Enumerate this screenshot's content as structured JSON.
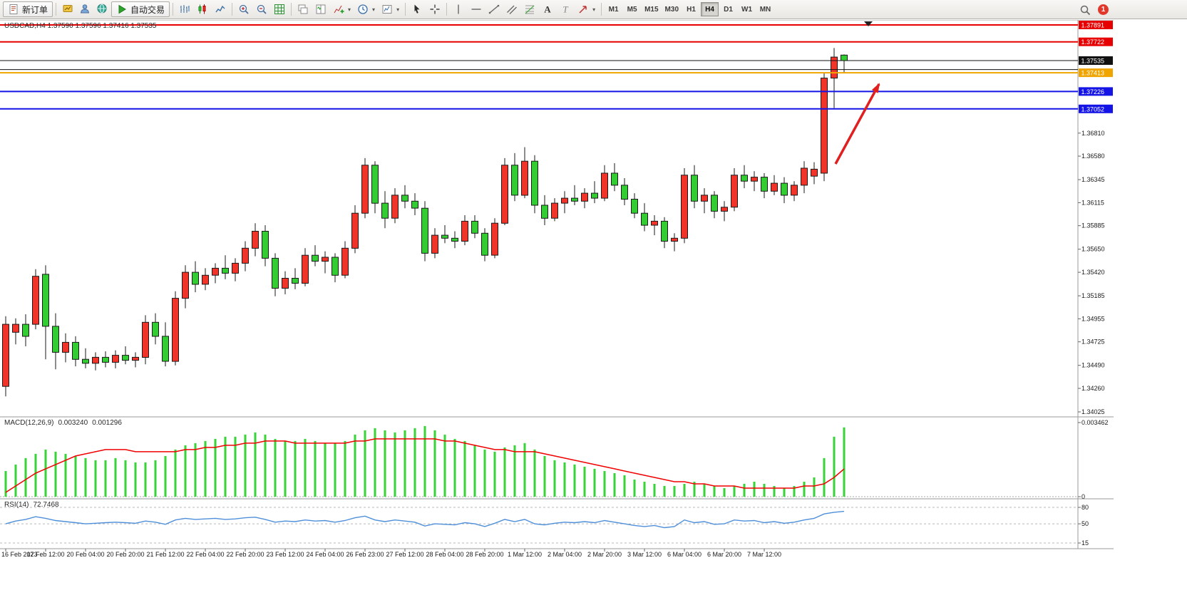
{
  "colors": {
    "bull": "#f0342a",
    "bear": "#33cc33",
    "candle_border": "#1a1a1a",
    "macd_hist": "#37d337",
    "macd_signal": "#f00000",
    "rsi_line": "#4e8fd9",
    "arrow": "#e02020",
    "axis_text": "#1a1a1a",
    "badge_text": "#ffffff"
  },
  "toolbar": {
    "new_order_label": "新订单",
    "autotrading_label": "自动交易",
    "notification_count": "1",
    "left_icons": [
      {
        "name": "symbols-window-button",
        "icon": "symbols"
      },
      {
        "name": "profiles-button",
        "icon": "profile"
      },
      {
        "name": "data-window-button",
        "icon": "globe"
      }
    ],
    "tools": [
      {
        "name": "bars-chart-button",
        "icon": "bars"
      },
      {
        "name": "candlestick-chart-button",
        "icon": "candles"
      },
      {
        "name": "line-chart-button",
        "icon": "linechart"
      },
      {
        "sep": true
      },
      {
        "name": "zoom-in-button",
        "icon": "zoomin"
      },
      {
        "name": "zoom-out-button",
        "icon": "zoomout"
      },
      {
        "name": "auto-arrange-button",
        "icon": "grid"
      },
      {
        "sep": true
      },
      {
        "name": "cascade-windows-button",
        "icon": "cascade"
      },
      {
        "name": "tile-windows-button",
        "icon": "tileh"
      },
      {
        "name": "add-indicator-button",
        "icon": "addind",
        "caret": true
      },
      {
        "name": "periods-button",
        "icon": "clock",
        "caret": true
      },
      {
        "name": "templates-button",
        "icon": "template",
        "caret": true
      },
      {
        "sep": true
      },
      {
        "name": "cursor-button",
        "icon": "cursor"
      },
      {
        "name": "crosshair-button",
        "icon": "crosshair"
      },
      {
        "sep": true
      },
      {
        "name": "vertical-line-button",
        "icon": "vline"
      },
      {
        "name": "horizontal-line-button",
        "icon": "hline"
      },
      {
        "name": "trendline-button",
        "icon": "trend"
      },
      {
        "name": "channel-button",
        "icon": "channel"
      },
      {
        "name": "fibonacci-button",
        "icon": "fibo"
      },
      {
        "name": "text-button",
        "icon": "textA"
      },
      {
        "name": "text-label-button",
        "icon": "labelT"
      },
      {
        "name": "arrows-button",
        "icon": "arrows",
        "caret": true
      }
    ],
    "timeframes": [
      {
        "label": "M1"
      },
      {
        "label": "M5"
      },
      {
        "label": "M15"
      },
      {
        "label": "M30"
      },
      {
        "label": "H1"
      },
      {
        "label": "H4",
        "active": true
      },
      {
        "label": "D1"
      },
      {
        "label": "W1"
      },
      {
        "label": "MN"
      }
    ]
  },
  "chart": {
    "title": "USDCAD,H4 1.37590 1.37596 1.37416 1.37535",
    "symbol": "USDCAD",
    "period": "H4",
    "price_axis_labels": [
      "1.36810",
      "1.36580",
      "1.36345",
      "1.36115",
      "1.35885",
      "1.35650",
      "1.35420",
      "1.35185",
      "1.34955",
      "1.34725",
      "1.34490",
      "1.34260",
      "1.34025"
    ],
    "time_axis_labels": [
      "16 Feb 2023",
      "17 Feb 12:00",
      "20 Feb 04:00",
      "20 Feb 20:00",
      "21 Feb 12:00",
      "22 Feb 04:00",
      "22 Feb 20:00",
      "23 Feb 12:00",
      "24 Feb 04:00",
      "26 Feb 23:00",
      "27 Feb 12:00",
      "28 Feb 04:00",
      "28 Feb 20:00",
      "1 Mar 12:00",
      "2 Mar 04:00",
      "2 Mar 20:00",
      "3 Mar 12:00",
      "6 Mar 04:00",
      "6 Mar 20:00",
      "7 Mar 12:00"
    ],
    "macd": {
      "label": "MACD(12,26,9)",
      "main_value": "0.003240",
      "signal_value": "0.001296",
      "axis_max_label": "0.003462",
      "axis_zero_label": "0"
    },
    "rsi": {
      "label": "RSI(14)",
      "value": "72.7468",
      "level_labels": [
        "80",
        "50",
        "15"
      ]
    }
  },
  "chart_data": [
    {
      "type": "candlestick",
      "symbol": "USDCAD",
      "timeframe": "H4",
      "ohlc_current": {
        "open": 1.3759,
        "high": 1.37596,
        "low": 1.37416,
        "close": 1.37535
      },
      "ylim": [
        1.34025,
        1.37891
      ],
      "grid": false,
      "horizontal_lines": [
        {
          "price": 1.37891,
          "color": "#e60000",
          "width": 2,
          "label": "1.37891"
        },
        {
          "price": 1.37722,
          "color": "#e60000",
          "width": 2,
          "label": "1.37722"
        },
        {
          "price": 1.37535,
          "color": "#111111",
          "width": 1,
          "label": "1.37535",
          "role": "current-price"
        },
        {
          "price": 1.37445,
          "color": "#111111",
          "width": 1
        },
        {
          "price": 1.37413,
          "color": "#efa400",
          "width": 2,
          "label": "1.37413"
        },
        {
          "price": 1.37226,
          "color": "#1414e6",
          "width": 2,
          "label": "1.37226"
        },
        {
          "price": 1.37052,
          "color": "#1414e6",
          "width": 2,
          "label": "1.37052"
        }
      ],
      "annotations": [
        {
          "type": "arrow",
          "direction": "up-right",
          "color": "#e02020"
        }
      ],
      "candles_ohlc": [
        [
          1.3428,
          1.3498,
          1.3418,
          1.349
        ],
        [
          1.3482,
          1.3496,
          1.347,
          1.349
        ],
        [
          1.349,
          1.35,
          1.3468,
          1.3478
        ],
        [
          1.349,
          1.3545,
          1.3485,
          1.3538
        ],
        [
          1.354,
          1.3549,
          1.3455,
          1.3488
        ],
        [
          1.3488,
          1.3501,
          1.3445,
          1.3462
        ],
        [
          1.3462,
          1.3481,
          1.3452,
          1.3472
        ],
        [
          1.3472,
          1.3478,
          1.3448,
          1.3455
        ],
        [
          1.3455,
          1.3466,
          1.3446,
          1.3451
        ],
        [
          1.3451,
          1.3462,
          1.3444,
          1.3457
        ],
        [
          1.3457,
          1.3463,
          1.3447,
          1.3452
        ],
        [
          1.3452,
          1.3464,
          1.3446,
          1.3459
        ],
        [
          1.3459,
          1.3468,
          1.345,
          1.3454
        ],
        [
          1.3454,
          1.3462,
          1.3447,
          1.3457
        ],
        [
          1.3457,
          1.3499,
          1.345,
          1.3492
        ],
        [
          1.3492,
          1.3501,
          1.347,
          1.3478
        ],
        [
          1.3478,
          1.3492,
          1.3448,
          1.3453
        ],
        [
          1.3453,
          1.3523,
          1.3449,
          1.3516
        ],
        [
          1.3516,
          1.3549,
          1.3506,
          1.3542
        ],
        [
          1.3542,
          1.3553,
          1.3522,
          1.353
        ],
        [
          1.353,
          1.3546,
          1.3524,
          1.3539
        ],
        [
          1.3539,
          1.3551,
          1.3531,
          1.3546
        ],
        [
          1.3546,
          1.3559,
          1.3535,
          1.3541
        ],
        [
          1.3541,
          1.3556,
          1.3533,
          1.3551
        ],
        [
          1.3551,
          1.3573,
          1.3543,
          1.3566
        ],
        [
          1.3566,
          1.3591,
          1.3558,
          1.3583
        ],
        [
          1.3583,
          1.3589,
          1.3548,
          1.3556
        ],
        [
          1.3556,
          1.3561,
          1.3518,
          1.3526
        ],
        [
          1.3526,
          1.3543,
          1.352,
          1.3536
        ],
        [
          1.3536,
          1.3546,
          1.3525,
          1.3531
        ],
        [
          1.3531,
          1.3566,
          1.3528,
          1.3559
        ],
        [
          1.3559,
          1.3569,
          1.3548,
          1.3553
        ],
        [
          1.3553,
          1.3563,
          1.3541,
          1.3557
        ],
        [
          1.3557,
          1.3561,
          1.3532,
          1.3539
        ],
        [
          1.3539,
          1.3573,
          1.3536,
          1.3566
        ],
        [
          1.3566,
          1.3609,
          1.3561,
          1.3601
        ],
        [
          1.3601,
          1.3656,
          1.3596,
          1.3649
        ],
        [
          1.3649,
          1.3653,
          1.3601,
          1.3611
        ],
        [
          1.3611,
          1.3623,
          1.3586,
          1.3596
        ],
        [
          1.3596,
          1.3626,
          1.3591,
          1.3619
        ],
        [
          1.3619,
          1.3629,
          1.3606,
          1.3613
        ],
        [
          1.3613,
          1.3621,
          1.3599,
          1.3606
        ],
        [
          1.3606,
          1.3613,
          1.3553,
          1.3561
        ],
        [
          1.3561,
          1.3586,
          1.3556,
          1.3579
        ],
        [
          1.3579,
          1.3589,
          1.3571,
          1.3576
        ],
        [
          1.3576,
          1.3583,
          1.3566,
          1.3573
        ],
        [
          1.3573,
          1.3599,
          1.3569,
          1.3593
        ],
        [
          1.3593,
          1.3599,
          1.3576,
          1.3581
        ],
        [
          1.3581,
          1.3586,
          1.3553,
          1.3559
        ],
        [
          1.3559,
          1.3596,
          1.3556,
          1.3591
        ],
        [
          1.3591,
          1.3656,
          1.3589,
          1.3649
        ],
        [
          1.3649,
          1.3661,
          1.3613,
          1.3619
        ],
        [
          1.3619,
          1.3667,
          1.3616,
          1.3653
        ],
        [
          1.3653,
          1.3659,
          1.3601,
          1.3609
        ],
        [
          1.3609,
          1.3619,
          1.3589,
          1.3596
        ],
        [
          1.3596,
          1.3616,
          1.3593,
          1.3611
        ],
        [
          1.3611,
          1.3623,
          1.3601,
          1.3616
        ],
        [
          1.3616,
          1.3629,
          1.3609,
          1.3613
        ],
        [
          1.3613,
          1.3626,
          1.3606,
          1.3621
        ],
        [
          1.3621,
          1.3633,
          1.3611,
          1.3616
        ],
        [
          1.3616,
          1.3649,
          1.3613,
          1.3641
        ],
        [
          1.3641,
          1.3651,
          1.3623,
          1.3629
        ],
        [
          1.3629,
          1.3636,
          1.3609,
          1.3615
        ],
        [
          1.3615,
          1.3621,
          1.3596,
          1.3601
        ],
        [
          1.3601,
          1.3611,
          1.3583,
          1.3589
        ],
        [
          1.3589,
          1.3599,
          1.3579,
          1.3593
        ],
        [
          1.3593,
          1.3597,
          1.3566,
          1.3573
        ],
        [
          1.3573,
          1.3581,
          1.3563,
          1.3576
        ],
        [
          1.3576,
          1.3646,
          1.3571,
          1.3639
        ],
        [
          1.3639,
          1.3649,
          1.3606,
          1.3613
        ],
        [
          1.3613,
          1.3626,
          1.3601,
          1.3619
        ],
        [
          1.3619,
          1.3623,
          1.3596,
          1.3603
        ],
        [
          1.3603,
          1.3613,
          1.3593,
          1.3607
        ],
        [
          1.3607,
          1.3646,
          1.3603,
          1.3639
        ],
        [
          1.3639,
          1.3649,
          1.3626,
          1.3633
        ],
        [
          1.3633,
          1.3643,
          1.3623,
          1.3637
        ],
        [
          1.3637,
          1.3641,
          1.3616,
          1.3623
        ],
        [
          1.3623,
          1.3639,
          1.3619,
          1.3631
        ],
        [
          1.3631,
          1.3637,
          1.3611,
          1.3619
        ],
        [
          1.3619,
          1.3633,
          1.3613,
          1.3629
        ],
        [
          1.3629,
          1.3653,
          1.3621,
          1.3646
        ],
        [
          1.3638,
          1.3652,
          1.363,
          1.3645
        ],
        [
          1.3641,
          1.3741,
          1.3633,
          1.3736
        ],
        [
          1.3736,
          1.3766,
          1.3706,
          1.3757
        ],
        [
          1.3759,
          1.37596,
          1.37416,
          1.37535
        ]
      ]
    },
    {
      "type": "bar",
      "name": "MACD(12,26,9)",
      "unit": 0.0001,
      "ylim": [
        0,
        0.003462
      ],
      "current_values": {
        "main": 0.00324,
        "signal": 0.001296
      },
      "values_hist": [
        12,
        15,
        18,
        20,
        22,
        21,
        20,
        19,
        18,
        17,
        17,
        18,
        17,
        16,
        16,
        17,
        19,
        22,
        24,
        25,
        26,
        27,
        28,
        28,
        29,
        30,
        29,
        27,
        26,
        26,
        27,
        26,
        25,
        25,
        26,
        29,
        31,
        32,
        31,
        30,
        31,
        32,
        33,
        31,
        29,
        27,
        26,
        24,
        22,
        21,
        23,
        24,
        25,
        22,
        19,
        17,
        16,
        15,
        14,
        13,
        12,
        11,
        10,
        8,
        7,
        6,
        5,
        5,
        6,
        7,
        6,
        5,
        4,
        5,
        6,
        7,
        6,
        5,
        4,
        5,
        7,
        9,
        18,
        28,
        32.4
      ],
      "series": [
        {
          "name": "signal",
          "values": [
            2,
            5,
            8,
            11,
            13,
            15,
            17,
            19,
            20,
            21,
            22,
            22,
            22,
            21,
            21,
            21,
            21,
            21,
            22,
            22,
            23,
            23,
            24,
            24,
            25,
            25,
            26,
            26,
            26,
            25,
            25,
            25,
            25,
            25,
            25,
            26,
            26,
            27,
            27,
            27,
            27,
            27,
            27,
            27,
            26,
            26,
            25,
            24,
            23,
            22,
            22,
            21,
            21,
            21,
            20,
            19,
            18,
            17,
            16,
            15,
            14,
            13,
            12,
            11,
            10,
            9,
            8,
            7,
            7,
            6,
            6,
            5,
            5,
            5,
            4,
            4,
            4,
            4,
            4,
            4,
            5,
            5,
            6,
            9,
            12.96
          ]
        }
      ]
    },
    {
      "type": "line",
      "name": "RSI(14)",
      "current_value": 72.7468,
      "levels": [
        80,
        50,
        15
      ],
      "values": [
        50,
        55,
        58,
        63,
        60,
        56,
        54,
        52,
        50,
        51,
        52,
        53,
        52,
        51,
        55,
        53,
        49,
        57,
        60,
        58,
        59,
        60,
        58,
        59,
        61,
        62,
        58,
        53,
        55,
        54,
        57,
        55,
        56,
        53,
        56,
        61,
        64,
        57,
        54,
        57,
        55,
        53,
        46,
        50,
        49,
        48,
        52,
        50,
        45,
        51,
        58,
        54,
        58,
        50,
        48,
        51,
        53,
        52,
        54,
        52,
        56,
        53,
        50,
        47,
        45,
        47,
        43,
        45,
        57,
        52,
        54,
        49,
        50,
        57,
        55,
        56,
        52,
        54,
        51,
        53,
        57,
        60,
        68,
        71,
        72.7
      ]
    }
  ]
}
